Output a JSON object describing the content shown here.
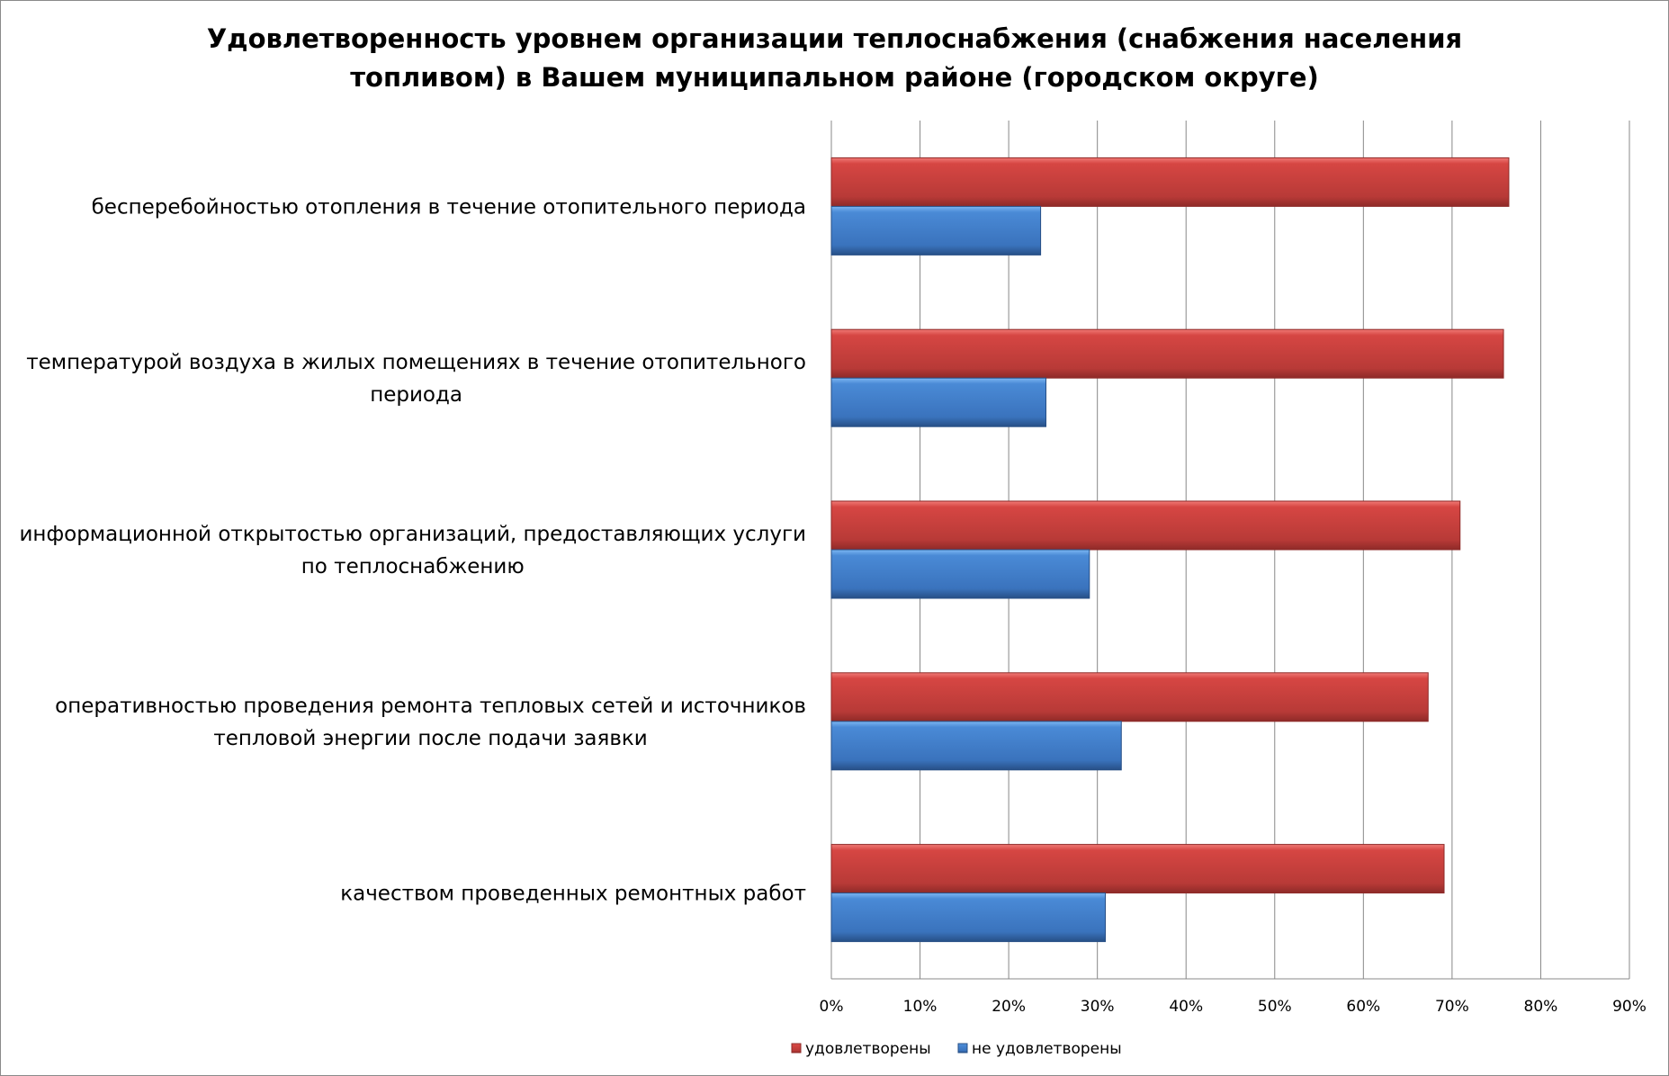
{
  "chart_data": {
    "type": "bar",
    "orientation": "horizontal",
    "title_lines": [
      "Удовлетворенность уровнем организации теплоснабжения (снабжения населения",
      "топливом) в Вашем муниципальном районе (городском округе)"
    ],
    "categories": [
      [
        "бесперебойностью  отопления в течение отопительного периода"
      ],
      [
        "температурой  воздуха в жилых помещениях в течение отопительного",
        "периода"
      ],
      [
        "информационной открытостью организаций, предоставляющих услуги",
        "по теплоснабжению"
      ],
      [
        "оперативностью проведения ремонта тепловых сетей и источников",
        "тепловой энергии после подачи заявки"
      ],
      [
        "качеством  проведенных ремонтных работ"
      ]
    ],
    "series": [
      {
        "name": "удовлетворены",
        "color": "#c0392b",
        "values": [
          76.4,
          75.8,
          70.9,
          67.3,
          69.1
        ]
      },
      {
        "name": "не удовлетворены",
        "color": "#3a78c8",
        "values": [
          23.6,
          24.2,
          29.1,
          32.7,
          30.9
        ]
      }
    ],
    "xlim": [
      0,
      90
    ],
    "xticks": [
      "0%",
      "10%",
      "20%",
      "30%",
      "40%",
      "50%",
      "60%",
      "70%",
      "80%",
      "90%"
    ],
    "grid": true,
    "legend": "bottom"
  }
}
